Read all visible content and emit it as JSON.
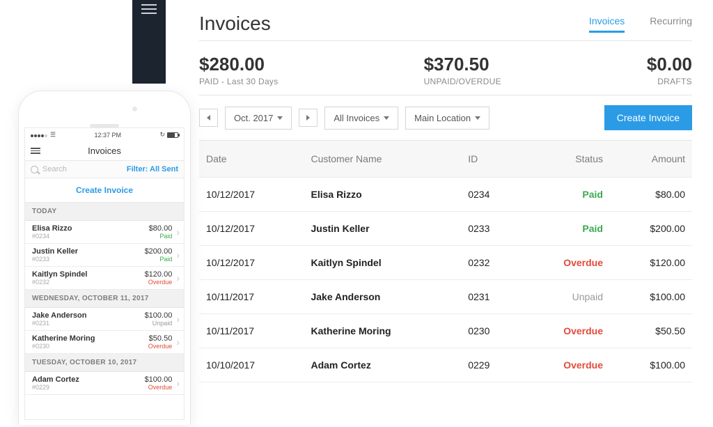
{
  "colors": {
    "accent": "#2b9be6",
    "paid": "#3aab4f",
    "overdue": "#e24a3a",
    "unpaid": "#9a9a9a"
  },
  "page": {
    "title": "Invoices",
    "tabs": {
      "active": "Invoices",
      "inactive": "Recurring"
    }
  },
  "summary": {
    "paid": {
      "value": "$280.00",
      "label": "PAID - Last 30 Days"
    },
    "unpaid": {
      "value": "$370.50",
      "label": "UNPAID/OVERDUE"
    },
    "drafts": {
      "value": "$0.00",
      "label": "DRAFTS"
    }
  },
  "toolbar": {
    "month": "Oct. 2017",
    "filter": "All Invoices",
    "location": "Main Location",
    "create": "Create Invoice"
  },
  "table": {
    "columns": {
      "date": "Date",
      "customer": "Customer Name",
      "id": "ID",
      "status": "Status",
      "amount": "Amount"
    },
    "rows": [
      {
        "date": "10/12/2017",
        "customer": "Elisa Rizzo",
        "id": "0234",
        "status": "Paid",
        "status_class": "paid",
        "amount": "$80.00"
      },
      {
        "date": "10/12/2017",
        "customer": "Justin Keller",
        "id": "0233",
        "status": "Paid",
        "status_class": "paid",
        "amount": "$200.00"
      },
      {
        "date": "10/12/2017",
        "customer": "Kaitlyn Spindel",
        "id": "0232",
        "status": "Overdue",
        "status_class": "overdue",
        "amount": "$120.00"
      },
      {
        "date": "10/11/2017",
        "customer": "Jake Anderson",
        "id": "0231",
        "status": "Unpaid",
        "status_class": "unpaid",
        "amount": "$100.00"
      },
      {
        "date": "10/11/2017",
        "customer": "Katherine Moring",
        "id": "0230",
        "status": "Overdue",
        "status_class": "overdue",
        "amount": "$50.50"
      },
      {
        "date": "10/10/2017",
        "customer": "Adam Cortez",
        "id": "0229",
        "status": "Overdue",
        "status_class": "overdue",
        "amount": "$100.00"
      }
    ]
  },
  "phone": {
    "time": "12:37 PM",
    "title": "Invoices",
    "search_placeholder": "Search",
    "filter_label": "Filter: All Sent",
    "create_label": "Create Invoice",
    "sections": [
      {
        "header": "TODAY",
        "rows": [
          {
            "name": "Elisa Rizzo",
            "sub": "#0234",
            "amount": "$80.00",
            "status": "Paid",
            "status_class": "paid"
          },
          {
            "name": "Justin Keller",
            "sub": "#0233",
            "amount": "$200.00",
            "status": "Paid",
            "status_class": "paid"
          },
          {
            "name": "Kaitlyn Spindel",
            "sub": "#0232",
            "amount": "$120.00",
            "status": "Overdue",
            "status_class": "overdue"
          }
        ]
      },
      {
        "header": "WEDNESDAY, OCTOBER 11, 2017",
        "rows": [
          {
            "name": "Jake Anderson",
            "sub": "#0231",
            "amount": "$100.00",
            "status": "Unpaid",
            "status_class": "unpaid"
          },
          {
            "name": "Katherine Moring",
            "sub": "#0230",
            "amount": "$50.50",
            "status": "Overdue",
            "status_class": "overdue"
          }
        ]
      },
      {
        "header": "TUESDAY, OCTOBER 10, 2017",
        "rows": [
          {
            "name": "Adam Cortez",
            "sub": "#0229",
            "amount": "$100.00",
            "status": "Overdue",
            "status_class": "overdue"
          }
        ]
      }
    ]
  }
}
